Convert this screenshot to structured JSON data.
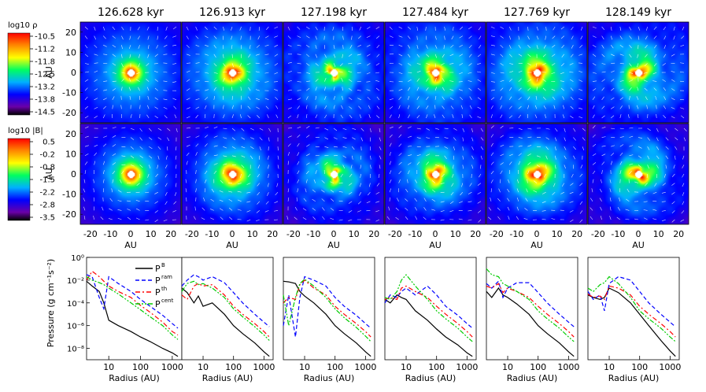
{
  "chart_data": [
    {
      "type": "heatmap",
      "title_row": [
        "126.628 kyr",
        "126.913 kyr",
        "127.198 kyr",
        "127.484 kyr",
        "127.769 kyr",
        "128.149 kyr"
      ],
      "rows": [
        {
          "colorbar_label": "log10 ρ",
          "ticks": [
            "-10.5",
            "-11.2",
            "-11.8",
            "-12.5",
            "-13.2",
            "-13.8",
            "-14.5"
          ]
        },
        {
          "colorbar_label": "log10 |B|",
          "ticks": [
            "0.5",
            "-0.2",
            "-0.8",
            "-1.5",
            "-2.2",
            "-2.8",
            "-3.5"
          ]
        }
      ],
      "xlabel": "AU",
      "ylabel": "AU",
      "xticks": [
        "-20",
        "-10",
        "0",
        "10",
        "20"
      ],
      "yticks": [
        "20",
        "10",
        "0",
        "-10",
        "-20"
      ],
      "xlim": [
        -25,
        25
      ],
      "ylim": [
        -25,
        25
      ],
      "colormap": [
        "#000000",
        "#6a00a8",
        "#0000ff",
        "#00b0ff",
        "#00ff60",
        "#ffff00",
        "#ff8000",
        "#ff0000"
      ]
    },
    {
      "type": "line",
      "xlabel": "Radius (AU)",
      "ylabel": "Pressure (g cm⁻¹s⁻²)",
      "x_scale": "log",
      "y_scale": "log",
      "xlim": [
        2,
        2000
      ],
      "ylim": [
        1e-09,
        1
      ],
      "xticks": [
        "10",
        "100",
        "1000"
      ],
      "yticks": [
        "10⁰",
        "10⁻²",
        "10⁻⁴",
        "10⁻⁶",
        "10⁻⁸"
      ],
      "legend": [
        {
          "name": "P",
          "sub": "B",
          "color": "#000000",
          "dash": "solid"
        },
        {
          "name": "P",
          "sub": "ram",
          "color": "#0000ff",
          "dash": "dashed"
        },
        {
          "name": "P",
          "sub": "th",
          "color": "#ff0000",
          "dash": "dashdot"
        },
        {
          "name": "P",
          "sub": "cent",
          "color": "#00cc00",
          "dash": "dashdotdot"
        }
      ],
      "legend_position": "top-right of first panel",
      "panels": [
        {
          "x": [
            2,
            3,
            5,
            7,
            10,
            20,
            50,
            100,
            200,
            500,
            1000,
            1500
          ],
          "series": {
            "PB": [
              0.008,
              0.003,
              0.001,
              0.0001,
              3e-06,
              1e-06,
              3e-07,
              1e-07,
              4e-08,
              1e-08,
              4e-09,
              2e-09
            ],
            "Pram": [
              0.03,
              0.02,
              0.0003,
              3e-05,
              0.02,
              0.005,
              0.001,
              0.0002,
              5e-05,
              8e-06,
              1.5e-06,
              6e-07
            ],
            "Pth": [
              0.01,
              0.06,
              0.02,
              0.008,
              0.003,
              0.001,
              0.0003,
              6e-05,
              1.5e-05,
              2e-06,
              3e-07,
              1.5e-07
            ],
            "Pcent": [
              0.02,
              0.01,
              0.006,
              0.004,
              0.002,
              0.0006,
              0.0001,
              2.5e-05,
              6e-06,
              1e-06,
              1.5e-07,
              6e-08
            ]
          }
        },
        {
          "x": [
            2,
            3,
            5,
            7,
            10,
            20,
            50,
            100,
            200,
            500,
            1000,
            1500
          ],
          "series": {
            "PB": [
              0.002,
              0.0008,
              0.0001,
              0.0004,
              5e-05,
              0.0001,
              1e-05,
              1e-06,
              2e-07,
              3e-08,
              5e-09,
              2e-09
            ],
            "Pram": [
              0.003,
              0.01,
              0.03,
              0.02,
              0.01,
              0.02,
              0.006,
              0.0008,
              0.0001,
              1e-05,
              2e-06,
              8e-07
            ],
            "Pth": [
              0.0005,
              0.0002,
              0.003,
              0.005,
              0.003,
              0.004,
              0.0005,
              5e-05,
              1e-05,
              1.5e-06,
              3e-07,
              1e-07
            ],
            "Pcent": [
              0.001,
              0.005,
              0.008,
              0.004,
              0.005,
              0.002,
              0.0003,
              3e-05,
              6e-06,
              8e-07,
              1.5e-07,
              5e-08
            ]
          }
        },
        {
          "x": [
            2,
            3,
            5,
            7,
            10,
            20,
            50,
            100,
            200,
            500,
            1000,
            1500
          ],
          "series": {
            "PB": [
              0.008,
              0.007,
              0.005,
              0.001,
              0.0004,
              0.0001,
              1e-05,
              1e-06,
              2e-07,
              3e-08,
              5e-09,
              2e-09
            ],
            "Pram": [
              1e-06,
              0.0005,
              1e-07,
              0.0003,
              0.02,
              0.01,
              0.003,
              0.0003,
              5e-05,
              8e-06,
              1.5e-06,
              6e-07
            ],
            "Pth": [
              0.0001,
              0.0003,
              0.0002,
              0.004,
              0.01,
              0.002,
              0.0005,
              5e-05,
              1e-05,
              1.5e-06,
              3e-07,
              1e-07
            ],
            "Pcent": [
              0.0005,
              1e-06,
              0.0003,
              0.005,
              0.012,
              0.003,
              0.0003,
              3e-05,
              5e-06,
              7e-07,
              1.2e-07,
              4e-08
            ]
          }
        },
        {
          "x": [
            2,
            3,
            5,
            7,
            10,
            20,
            50,
            100,
            200,
            500,
            1000,
            1500
          ],
          "series": {
            "PB": [
              0.0002,
              0.0001,
              0.0005,
              0.0003,
              0.0002,
              2e-05,
              3e-06,
              5e-07,
              1e-07,
              2e-08,
              4e-09,
              2e-09
            ],
            "Pram": [
              0.0001,
              0.0005,
              0.0003,
              0.001,
              0.002,
              0.0005,
              0.003,
              0.0005,
              5e-05,
              8e-06,
              1.5e-06,
              6e-07
            ],
            "Pth": [
              0.0002,
              0.0003,
              0.0002,
              0.002,
              0.003,
              0.001,
              0.0003,
              5e-05,
              1e-05,
              1.5e-06,
              3e-07,
              1e-07
            ],
            "Pcent": [
              0.0003,
              0.0002,
              0.001,
              0.01,
              0.03,
              0.003,
              0.0002,
              2e-05,
              4e-06,
              6e-07,
              1e-07,
              4e-08
            ]
          }
        },
        {
          "x": [
            2,
            3,
            5,
            7,
            10,
            20,
            50,
            100,
            200,
            500,
            1000,
            1500
          ],
          "series": {
            "PB": [
              0.001,
              0.0003,
              0.002,
              0.0005,
              0.0003,
              8e-05,
              1e-05,
              1e-06,
              2e-07,
              3e-08,
              5e-09,
              2e-09
            ],
            "Pram": [
              0.005,
              0.002,
              0.008,
              0.0003,
              0.002,
              0.006,
              0.006,
              0.0008,
              0.0001,
              1e-05,
              2e-06,
              8e-07
            ],
            "Pth": [
              0.003,
              0.002,
              0.005,
              0.0008,
              0.002,
              0.001,
              0.0003,
              5e-05,
              1e-05,
              1.5e-06,
              3e-07,
              1e-07
            ],
            "Pcent": [
              0.1,
              0.03,
              0.02,
              0.005,
              0.003,
              0.001,
              0.0002,
              2e-05,
              4e-06,
              6e-07,
              1e-07,
              4e-08
            ]
          }
        },
        {
          "x": [
            2,
            3,
            5,
            7,
            10,
            20,
            50,
            100,
            200,
            500,
            1000,
            1500
          ],
          "series": {
            "PB": [
              0.0005,
              0.0003,
              0.0002,
              0.0003,
              0.002,
              0.0008,
              0.0001,
              1e-05,
              1e-06,
              5e-08,
              6e-09,
              2e-09
            ],
            "Pram": [
              0.001,
              0.0002,
              0.0005,
              2e-05,
              0.005,
              0.02,
              0.01,
              0.001,
              0.0001,
              1e-05,
              2e-06,
              8e-07
            ],
            "Pth": [
              0.0006,
              0.0003,
              0.0004,
              0.0002,
              0.003,
              0.002,
              0.0005,
              5e-05,
              1e-05,
              1.5e-06,
              3e-07,
              1e-07
            ],
            "Pcent": [
              0.002,
              0.001,
              0.004,
              0.006,
              0.02,
              0.005,
              0.0003,
              2e-05,
              4e-06,
              6e-07,
              1e-07,
              4e-08
            ]
          }
        }
      ]
    }
  ],
  "map_styles": [
    {
      "core": 3.2,
      "rings": 1.2,
      "arms": 0.0,
      "blobs": 0.2,
      "noise": 0.6
    },
    {
      "core": 2.6,
      "rings": 2.0,
      "arms": 0.6,
      "blobs": 0.8,
      "noise": 0.8
    },
    {
      "core": 1.8,
      "rings": 1.4,
      "arms": 1.4,
      "blobs": 2.2,
      "noise": 1.2
    },
    {
      "core": 2.4,
      "rings": 1.8,
      "arms": 1.0,
      "blobs": 1.6,
      "noise": 1.0
    },
    {
      "core": 2.2,
      "rings": 2.4,
      "arms": 1.0,
      "blobs": 1.4,
      "noise": 0.9
    },
    {
      "core": 2.4,
      "rings": 1.6,
      "arms": 2.6,
      "blobs": 1.2,
      "noise": 1.0
    }
  ]
}
